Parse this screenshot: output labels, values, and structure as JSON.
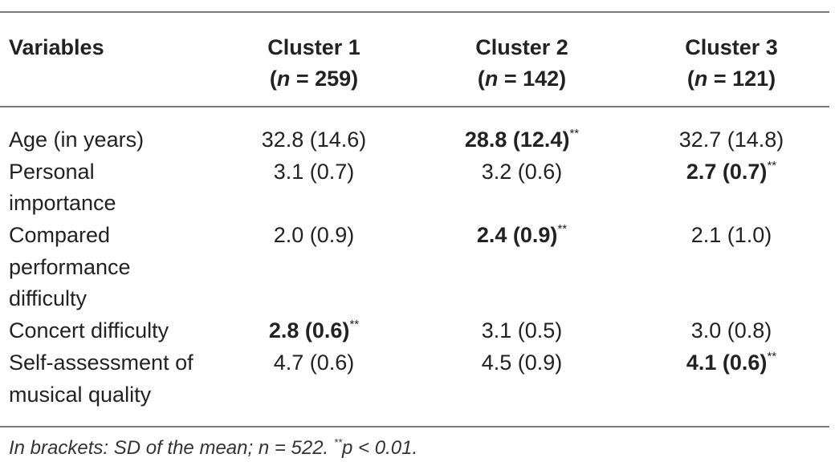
{
  "table": {
    "headers": {
      "variables": "Variables",
      "cluster1": {
        "name": "Cluster 1",
        "n_label": "n",
        "n_rest": " = 259)"
      },
      "cluster2": {
        "name": "Cluster 2",
        "n_label": "n",
        "n_rest": " = 142)"
      },
      "cluster3": {
        "name": "Cluster 3",
        "n_label": "n",
        "n_rest": " = 121)"
      }
    },
    "rows": [
      {
        "label": "Age (in years)",
        "c1": "32.8 (14.6)",
        "c2": "28.8 (12.4)",
        "c3": "32.7 (14.8)",
        "bold": "c2",
        "lines": 1
      },
      {
        "label": "Personal importance",
        "c1": "3.1 (0.7)",
        "c2": "3.2 (0.6)",
        "c3": "2.7 (0.7)",
        "bold": "c3",
        "lines": 2
      },
      {
        "label": "Compared performance difficulty",
        "c1": "2.0 (0.9)",
        "c2": "2.4 (0.9)",
        "c3": "2.1 (1.0)",
        "bold": "c2",
        "lines": 3
      },
      {
        "label": "Concert difficulty",
        "c1": "2.8 (0.6)",
        "c2": "3.1 (0.5)",
        "c3": "3.0 (0.8)",
        "bold": "c1",
        "lines": 1
      },
      {
        "label": "Self-assessment of musical quality",
        "c1": "4.7 (0.6)",
        "c2": "4.5 (0.9)",
        "c3": "4.1 (0.6)",
        "bold": "c3",
        "lines": 2
      }
    ],
    "significance_marker": "**"
  },
  "note": {
    "text_before": "In brackets: SD of the mean; n = 522. ",
    "marker": "**",
    "text_after": "p < 0.01."
  }
}
